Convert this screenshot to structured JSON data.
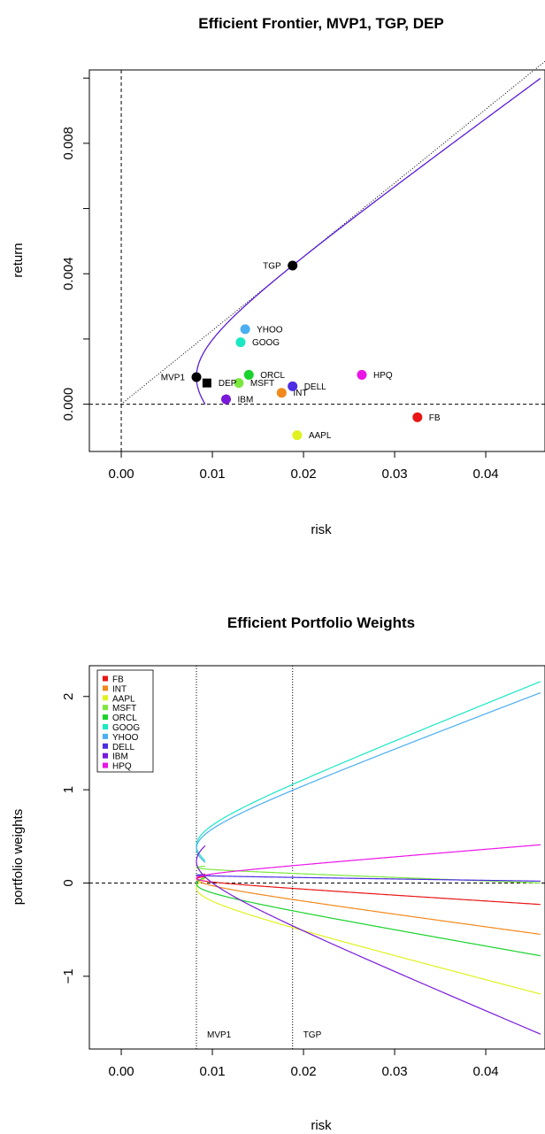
{
  "chart_data": [
    {
      "type": "scatter",
      "title": "Efficient Frontier, MVP1, TGP, DEP",
      "xlabel": "risk",
      "ylabel": "return",
      "xlim": [
        -0.0035,
        0.0465
      ],
      "ylim": [
        -0.00145,
        0.01025
      ],
      "x_ticks": [
        "0.00",
        "0.01",
        "0.02",
        "0.03",
        "0.04"
      ],
      "x_tick_values": [
        0,
        0.01,
        0.02,
        0.03,
        0.04
      ],
      "y_ticks": [
        "0.000",
        "0.004",
        "0.008"
      ],
      "y_tick_values": [
        0,
        0.004,
        0.008
      ],
      "frontier": {
        "color": "#5a1ed8",
        "mvp_risk": 0.00825,
        "mvp_return": 0.00083,
        "tgp_risk": 0.0188,
        "tgp_return": 0.00425,
        "max_risk": 0.046,
        "min_return": 0.0
      },
      "capital_market_line": {
        "from": [
          0,
          0
        ],
        "slope": 0.2261
      },
      "reference_lines": {
        "horizontal_y": 0,
        "vertical_x": 0
      },
      "assets": [
        {
          "name": "YHOO",
          "risk": 0.0136,
          "return": 0.0023,
          "color": "#4aaef2"
        },
        {
          "name": "GOOG",
          "risk": 0.0131,
          "return": 0.0019,
          "color": "#19e8c3"
        },
        {
          "name": "ORCL",
          "risk": 0.014,
          "return": 0.0009,
          "color": "#19d22c"
        },
        {
          "name": "MSFT",
          "risk": 0.0129,
          "return": 0.00065,
          "color": "#7ce83f"
        },
        {
          "name": "IBM",
          "risk": 0.0115,
          "return": 0.00015,
          "color": "#7a19d9"
        },
        {
          "name": "INT",
          "risk": 0.0176,
          "return": 0.00035,
          "color": "#f2891c"
        },
        {
          "name": "DELL",
          "risk": 0.0188,
          "return": 0.00055,
          "color": "#4d2ce3"
        },
        {
          "name": "HPQ",
          "risk": 0.0264,
          "return": 0.0009,
          "color": "#ea16e6"
        },
        {
          "name": "FB",
          "risk": 0.0325,
          "return": -0.0004,
          "color": "#e81616"
        },
        {
          "name": "AAPL",
          "risk": 0.0193,
          "return": -0.00095,
          "color": "#dff21f"
        }
      ],
      "special_points": [
        {
          "name": "MVP1",
          "risk": 0.00825,
          "return": 0.00083,
          "shape": "circle",
          "label_side": "left"
        },
        {
          "name": "TGP",
          "risk": 0.0188,
          "return": 0.00425,
          "shape": "circle",
          "label_side": "left"
        },
        {
          "name": "DEP",
          "risk": 0.0094,
          "return": 0.00065,
          "shape": "square",
          "label_side": "right"
        }
      ]
    },
    {
      "type": "line",
      "title": "Efficient Portfolio Weights",
      "xlabel": "risk",
      "ylabel": "portfolio weights",
      "xlim": [
        -0.0035,
        0.0465
      ],
      "ylim": [
        -1.78,
        2.33
      ],
      "x_ticks": [
        "0.00",
        "0.01",
        "0.02",
        "0.03",
        "0.04"
      ],
      "x_tick_values": [
        0,
        0.01,
        0.02,
        0.03,
        0.04
      ],
      "y_ticks": [
        "−1",
        "0",
        "1",
        "2"
      ],
      "y_tick_values": [
        -1,
        0,
        1,
        2
      ],
      "horizontal_reference": 0,
      "vertical_markers": [
        {
          "label": "MVP1",
          "x": 0.00825
        },
        {
          "label": "TGP",
          "x": 0.0188
        }
      ],
      "legend": {
        "position": "top-left"
      },
      "series": [
        {
          "name": "FB",
          "color": "#e81616",
          "start": 0.07,
          "end": -0.23
        },
        {
          "name": "INT",
          "color": "#f2891c",
          "start": 0.1,
          "end": -0.55
        },
        {
          "name": "AAPL",
          "color": "#dff21f",
          "start": 0.05,
          "end": -1.19
        },
        {
          "name": "MSFT",
          "color": "#7ce83f",
          "start": 0.18,
          "end": 0.0
        },
        {
          "name": "ORCL",
          "color": "#19d22c",
          "start": 0.06,
          "end": -0.78
        },
        {
          "name": "GOOG",
          "color": "#19e8c3",
          "start": 0.24,
          "end": 2.16
        },
        {
          "name": "YHOO",
          "color": "#4aaef2",
          "start": 0.22,
          "end": 2.04
        },
        {
          "name": "DELL",
          "color": "#4d2ce3",
          "start": 0.09,
          "end": 0.02
        },
        {
          "name": "IBM",
          "color": "#7a19d9",
          "start": 0.4,
          "end": -1.62
        },
        {
          "name": "HPQ",
          "color": "#ea16e6",
          "start": 0.02,
          "end": 0.41
        }
      ]
    }
  ]
}
